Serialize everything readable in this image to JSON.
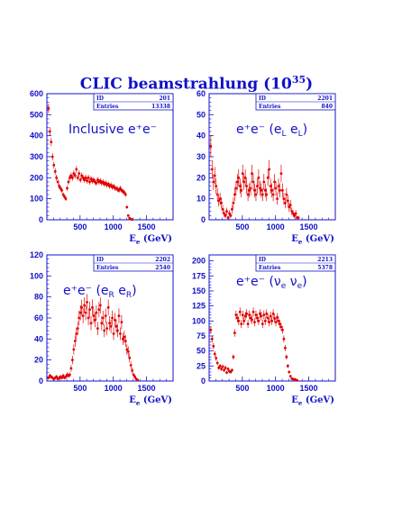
{
  "title_main": "CLIC beamstrahlung (10",
  "title_exp": "35",
  "title_close": ")",
  "colors": {
    "axis": "#1010c8",
    "data": "#e00000"
  },
  "chart_data": [
    {
      "type": "scatter",
      "id": "201",
      "entries": "13338",
      "label": "Inclusive e⁺e⁻",
      "xlabel": "E",
      "xlabel_sub": "e",
      "xlabel_unit": " (GeV)",
      "xlim": [
        0,
        1900
      ],
      "ylim": [
        0,
        600
      ],
      "xticks": [
        500,
        1000,
        1500
      ],
      "yticks": [
        0,
        100,
        200,
        300,
        400,
        500,
        600
      ],
      "x": [
        25,
        45,
        65,
        85,
        105,
        125,
        145,
        165,
        185,
        205,
        225,
        245,
        265,
        285,
        305,
        325,
        345,
        365,
        385,
        405,
        425,
        445,
        465,
        485,
        505,
        525,
        545,
        565,
        585,
        605,
        625,
        645,
        665,
        685,
        705,
        725,
        745,
        765,
        785,
        805,
        825,
        845,
        865,
        885,
        905,
        925,
        945,
        965,
        985,
        1005,
        1025,
        1045,
        1065,
        1085,
        1105,
        1125,
        1145,
        1165,
        1185,
        1205,
        1225,
        1245,
        1265,
        1285,
        1305,
        1325,
        1345,
        1365,
        1385
      ],
      "y": [
        530,
        420,
        370,
        300,
        260,
        230,
        200,
        180,
        160,
        150,
        140,
        120,
        110,
        100,
        150,
        180,
        200,
        210,
        200,
        220,
        210,
        240,
        200,
        220,
        190,
        210,
        200,
        190,
        200,
        185,
        200,
        180,
        195,
        185,
        190,
        180,
        175,
        190,
        180,
        185,
        175,
        180,
        170,
        175,
        165,
        170,
        160,
        165,
        155,
        160,
        150,
        150,
        145,
        140,
        150,
        140,
        135,
        130,
        120,
        60,
        20,
        8,
        3,
        1,
        0,
        0,
        0,
        0,
        0
      ]
    },
    {
      "type": "scatter",
      "id": "2201",
      "entries": "840",
      "label": "e⁺e⁻ (e",
      "label_s1": "L",
      "label_mid": " e",
      "label_s2": "L",
      "label_end": ")",
      "xlabel": "E",
      "xlabel_sub": "e",
      "xlabel_unit": " (GeV)",
      "xlim": [
        0,
        1900
      ],
      "ylim": [
        0,
        60
      ],
      "xticks": [
        500,
        1000,
        1500
      ],
      "yticks": [
        0,
        10,
        20,
        30,
        40,
        50,
        60
      ],
      "x": [
        25,
        45,
        65,
        85,
        105,
        125,
        145,
        165,
        185,
        205,
        225,
        245,
        265,
        285,
        305,
        325,
        345,
        365,
        385,
        405,
        425,
        445,
        465,
        485,
        505,
        525,
        545,
        565,
        585,
        605,
        625,
        645,
        665,
        685,
        705,
        725,
        745,
        765,
        785,
        805,
        825,
        845,
        865,
        885,
        905,
        925,
        945,
        965,
        985,
        1005,
        1025,
        1045,
        1065,
        1085,
        1105,
        1125,
        1145,
        1165,
        1185,
        1205,
        1225,
        1245,
        1265,
        1285,
        1305,
        1325,
        1345,
        1365,
        1385
      ],
      "y": [
        35,
        24,
        18,
        21,
        16,
        12,
        9,
        10,
        8,
        5,
        3,
        2,
        4,
        1,
        3,
        2,
        5,
        8,
        12,
        15,
        18,
        20,
        16,
        14,
        22,
        18,
        20,
        16,
        12,
        14,
        15,
        22,
        18,
        14,
        12,
        16,
        20,
        15,
        14,
        12,
        18,
        14,
        12,
        20,
        24,
        16,
        14,
        12,
        18,
        15,
        10,
        16,
        14,
        22,
        14,
        10,
        8,
        12,
        9,
        6,
        7,
        4,
        3,
        2,
        3,
        1,
        1,
        0,
        0
      ]
    },
    {
      "type": "scatter",
      "id": "2202",
      "entries": "2540",
      "label": "e⁺e⁻ (e",
      "label_s1": "R",
      "label_mid": " e",
      "label_s2": "R",
      "label_end": ")",
      "xlabel": "E",
      "xlabel_sub": "e",
      "xlabel_unit": " (GeV)",
      "xlim": [
        0,
        1900
      ],
      "ylim": [
        0,
        120
      ],
      "xticks": [
        500,
        1000,
        1500
      ],
      "yticks": [
        0,
        20,
        40,
        60,
        80,
        100,
        120
      ],
      "x": [
        25,
        45,
        65,
        85,
        105,
        125,
        145,
        165,
        185,
        205,
        225,
        245,
        265,
        285,
        305,
        325,
        345,
        365,
        385,
        405,
        425,
        445,
        465,
        485,
        505,
        525,
        545,
        565,
        585,
        605,
        625,
        645,
        665,
        685,
        705,
        725,
        745,
        765,
        785,
        805,
        825,
        845,
        865,
        885,
        905,
        925,
        945,
        965,
        985,
        1005,
        1025,
        1045,
        1065,
        1085,
        1105,
        1125,
        1145,
        1165,
        1185,
        1205,
        1225,
        1245,
        1265,
        1285,
        1305,
        1325,
        1345,
        1365,
        1385
      ],
      "y": [
        3,
        5,
        4,
        3,
        2,
        3,
        4,
        2,
        3,
        4,
        3,
        5,
        3,
        4,
        6,
        5,
        6,
        12,
        20,
        30,
        38,
        45,
        50,
        60,
        65,
        70,
        62,
        72,
        65,
        75,
        60,
        68,
        55,
        70,
        62,
        58,
        65,
        50,
        68,
        72,
        55,
        60,
        48,
        62,
        50,
        70,
        55,
        52,
        60,
        45,
        58,
        52,
        48,
        62,
        45,
        56,
        40,
        42,
        38,
        30,
        28,
        22,
        15,
        10,
        6,
        4,
        2,
        1,
        0
      ]
    },
    {
      "type": "scatter",
      "id": "2213",
      "entries": "5378",
      "label": "e⁺e⁻ (ν",
      "label_s1": "e",
      "label_mid": " ν",
      "label_s2": "e",
      "label_end": ")",
      "xlabel": "E",
      "xlabel_sub": "e",
      "xlabel_unit": " (GeV)",
      "xlim": [
        0,
        1900
      ],
      "ylim": [
        0,
        210
      ],
      "xticks": [
        500,
        1000,
        1500
      ],
      "yticks": [
        0,
        25,
        50,
        75,
        100,
        125,
        150,
        175,
        200
      ],
      "x": [
        25,
        45,
        65,
        85,
        105,
        125,
        145,
        165,
        185,
        205,
        225,
        245,
        265,
        285,
        305,
        325,
        345,
        365,
        385,
        405,
        425,
        445,
        465,
        485,
        505,
        525,
        545,
        565,
        585,
        605,
        625,
        645,
        665,
        685,
        705,
        725,
        745,
        765,
        785,
        805,
        825,
        845,
        865,
        885,
        905,
        925,
        945,
        965,
        985,
        1005,
        1025,
        1045,
        1065,
        1085,
        1105,
        1125,
        1145,
        1165,
        1185,
        1205,
        1225,
        1245,
        1265,
        1285,
        1305,
        1325,
        1345,
        1365,
        1385
      ],
      "y": [
        85,
        70,
        58,
        45,
        38,
        30,
        22,
        25,
        20,
        24,
        18,
        22,
        14,
        20,
        16,
        15,
        18,
        40,
        80,
        110,
        105,
        100,
        115,
        95,
        110,
        100,
        108,
        112,
        95,
        110,
        105,
        102,
        115,
        98,
        110,
        105,
        100,
        112,
        108,
        95,
        110,
        100,
        112,
        105,
        98,
        108,
        100,
        112,
        104,
        98,
        106,
        100,
        95,
        90,
        85,
        70,
        55,
        40,
        25,
        15,
        8,
        4,
        3,
        3,
        2,
        1,
        0,
        0,
        0
      ]
    }
  ]
}
